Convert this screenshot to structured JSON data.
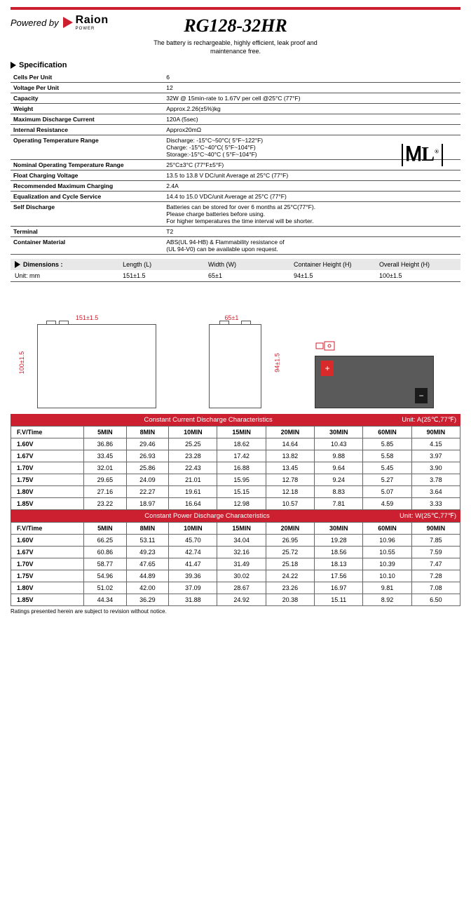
{
  "header": {
    "powered_by": "Powered by",
    "brand": "Raion",
    "brand_sub": "POWER",
    "product": "RG128-32HR",
    "description_l1": "The battery is rechargeable, highly efficient, leak proof and",
    "description_l2": "maintenance free."
  },
  "spec_heading": "Specification",
  "specs": [
    {
      "k": "Cells Per Unit",
      "v": "6"
    },
    {
      "k": "Voltage Per Unit",
      "v": "12"
    },
    {
      "k": "Capacity",
      "v": "32W @ 15min-rate to 1.67V per cell @25°C (77°F)"
    },
    {
      "k": "Weight",
      "v": "Approx.2.26(±5%)kg"
    },
    {
      "k": "Maximum Discharge Current",
      "v": "120A (5sec)"
    },
    {
      "k": "Internal Resistance",
      "v": "Approx20mΩ"
    },
    {
      "k": "Operating Temperature Range",
      "v": "Discharge: -15°C~50°C( 5°F~122°F)\nCharge: -15°C~40°C( 5°F~104°F)\nStorage:-15°C~40°C ( 5°F~104°F)"
    },
    {
      "k": "Nominal Operating Temperature Range",
      "v": "25°C±3°C (77°F±5°F)"
    },
    {
      "k": "Float Charging Voltage",
      "v": "13.5 to 13.8 V DC/unit Average at 25°C (77°F)"
    },
    {
      "k": "Recommended Maximum Charging",
      "v": "2.4A"
    },
    {
      "k": "Equalization and Cycle Service",
      "v": "14.4 to 15.0 VDC/unit Average at 25°C (77°F)"
    },
    {
      "k": "Self Discharge",
      "v": "Batteries can be stored for over 6 months at 25°C(77°F).\nPlease charge batteries before using.\nFor higher temperatures the time interval will be shorter."
    },
    {
      "k": "Terminal",
      "v": "T2"
    },
    {
      "k": "Container Material",
      "v": "ABS(UL 94-HB) & Flammability resistance of\n(UL 94-V0) can be available upon request."
    }
  ],
  "ul_mark": "ᎷL",
  "dimensions": {
    "heading": "Dimensions :",
    "unit_label": "Unit: mm",
    "cols": [
      "Length (L)",
      "Width (W)",
      "Container Height (H)",
      "Overall Height (H)"
    ],
    "vals": [
      "151±1.5",
      "65±1",
      "94±1.5",
      "100±1.5"
    ]
  },
  "diag_dims": {
    "len": "151±1.5",
    "wid": "65±1",
    "h1": "100±1.5",
    "h2": "94±1.5"
  },
  "current_table": {
    "title": "Constant Current Discharge Characteristics",
    "unit": "Unit: A(25℃,77℉)",
    "cols": [
      "F.V/Time",
      "5MIN",
      "8MIN",
      "10MIN",
      "15MIN",
      "20MIN",
      "30MIN",
      "60MIN",
      "90MIN"
    ],
    "rows": [
      [
        "1.60V",
        "36.86",
        "29.46",
        "25.25",
        "18.62",
        "14.64",
        "10.43",
        "5.85",
        "4.15"
      ],
      [
        "1.67V",
        "33.45",
        "26.93",
        "23.28",
        "17.42",
        "13.82",
        "9.88",
        "5.58",
        "3.97"
      ],
      [
        "1.70V",
        "32.01",
        "25.86",
        "22.43",
        "16.88",
        "13.45",
        "9.64",
        "5.45",
        "3.90"
      ],
      [
        "1.75V",
        "29.65",
        "24.09",
        "21.01",
        "15.95",
        "12.78",
        "9.24",
        "5.27",
        "3.78"
      ],
      [
        "1.80V",
        "27.16",
        "22.27",
        "19.61",
        "15.15",
        "12.18",
        "8.83",
        "5.07",
        "3.64"
      ],
      [
        "1.85V",
        "23.22",
        "18.97",
        "16.64",
        "12.98",
        "10.57",
        "7.81",
        "4.59",
        "3.33"
      ]
    ]
  },
  "power_table": {
    "title": "Constant Power Discharge Characteristics",
    "unit": "Unit: W(25℃,77℉)",
    "cols": [
      "F.V/Time",
      "5MIN",
      "8MIN",
      "10MIN",
      "15MIN",
      "20MIN",
      "30MIN",
      "60MIN",
      "90MIN"
    ],
    "rows": [
      [
        "1.60V",
        "66.25",
        "53.11",
        "45.70",
        "34.04",
        "26.95",
        "19.28",
        "10.96",
        "7.85"
      ],
      [
        "1.67V",
        "60.86",
        "49.23",
        "42.74",
        "32.16",
        "25.72",
        "18.56",
        "10.55",
        "7.59"
      ],
      [
        "1.70V",
        "58.77",
        "47.65",
        "41.47",
        "31.49",
        "25.18",
        "18.13",
        "10.39",
        "7.47"
      ],
      [
        "1.75V",
        "54.96",
        "44.89",
        "39.36",
        "30.02",
        "24.22",
        "17.56",
        "10.10",
        "7.28"
      ],
      [
        "1.80V",
        "51.02",
        "42.00",
        "37.09",
        "28.67",
        "23.26",
        "16.97",
        "9.81",
        "7.08"
      ],
      [
        "1.85V",
        "44.34",
        "36.29",
        "31.88",
        "24.92",
        "20.38",
        "15.11",
        "8.92",
        "6.50"
      ]
    ]
  },
  "footnote": "Ratings presented herein are subject to revision without notice.",
  "colors": {
    "brand_red": "#cc1f2f",
    "grey_bg": "#e8e8e8"
  }
}
